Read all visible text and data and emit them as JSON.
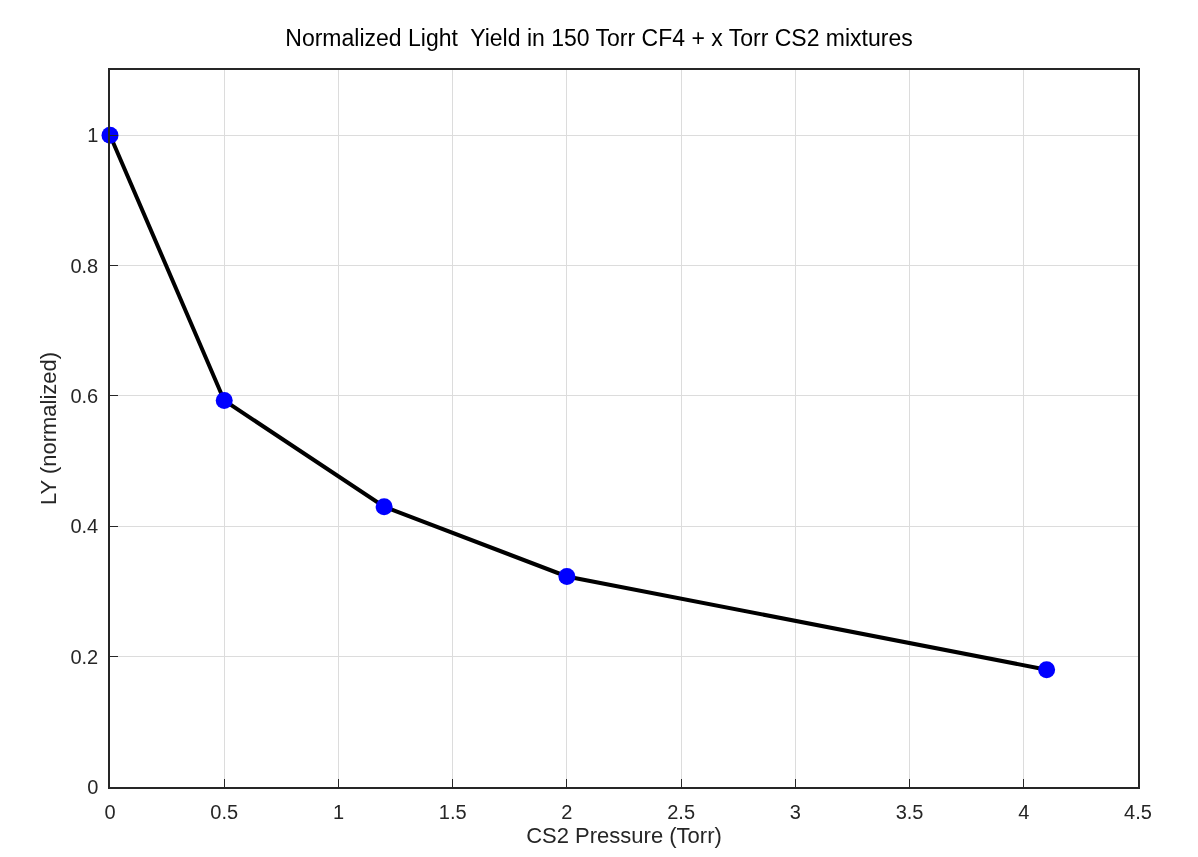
{
  "chart_data": {
    "type": "line",
    "title": "Normalized Light  Yield in 150 Torr CF4 + x Torr CS2 mixtures",
    "xlabel": "CS2 Pressure (Torr)",
    "ylabel": "LY (normalized)",
    "x": [
      0,
      0.5,
      1.2,
      2,
      4.1
    ],
    "series": [
      {
        "color": "#000000",
        "colors": [
          "#0000ff",
          "#0000ff",
          "#0000ff",
          "#0000ff",
          "#0000ff"
        ],
        "values": [
          1.0,
          0.593,
          0.43,
          0.323,
          0.18
        ]
      }
    ],
    "xlim": [
      0,
      4.5
    ],
    "xticks": [
      0,
      0.5,
      1,
      1.5,
      2,
      2.5,
      3,
      3.5,
      4,
      4.5
    ],
    "ylim": [
      0,
      1.1
    ],
    "yticks": [
      0,
      0.2,
      0.4,
      0.6,
      0.8,
      1
    ],
    "grid": true,
    "marker": "circle",
    "line_style": "solid"
  }
}
